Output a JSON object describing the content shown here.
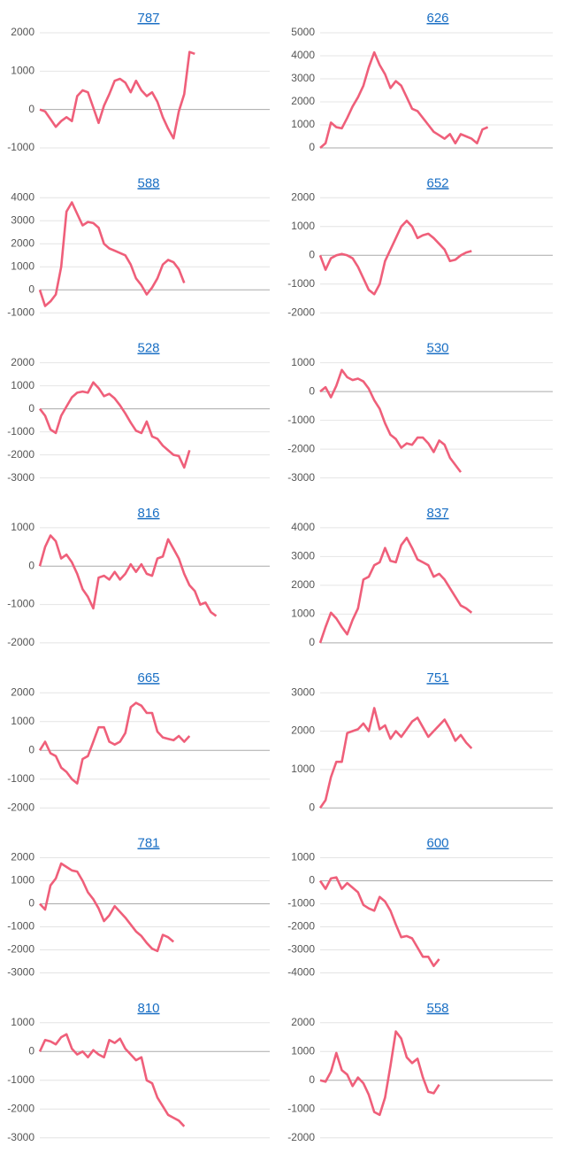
{
  "chart_data": [
    {
      "type": "line",
      "title": "787",
      "color": "#ef5f7a",
      "grid": true,
      "ylim": [
        -1000,
        2000
      ],
      "yticks": [
        -1000,
        0,
        1000,
        2000
      ],
      "values": [
        0,
        -50,
        -250,
        -450,
        -300,
        -200,
        -300,
        350,
        500,
        450,
        50,
        -350,
        100,
        400,
        750,
        800,
        700,
        450,
        750,
        500,
        350,
        450,
        200,
        -200,
        -500,
        -750,
        -50,
        400,
        1500,
        1450
      ]
    },
    {
      "type": "line",
      "title": "626",
      "color": "#ef5f7a",
      "grid": true,
      "ylim": [
        0,
        5000
      ],
      "yticks": [
        0,
        1000,
        2000,
        3000,
        4000,
        5000
      ],
      "values": [
        0,
        200,
        1100,
        900,
        850,
        1300,
        1800,
        2200,
        2700,
        3500,
        4150,
        3600,
        3200,
        2600,
        2900,
        2700,
        2200,
        1700,
        1600,
        1300,
        1000,
        700,
        550,
        400,
        600,
        200,
        600,
        500,
        400,
        200,
        800,
        900
      ]
    },
    {
      "type": "line",
      "title": "588",
      "color": "#ef5f7a",
      "grid": true,
      "ylim": [
        -1000,
        4000
      ],
      "yticks": [
        -1000,
        0,
        1000,
        2000,
        3000,
        4000
      ],
      "values": [
        0,
        -700,
        -500,
        -200,
        1000,
        3400,
        3800,
        3300,
        2800,
        2950,
        2900,
        2700,
        2000,
        1800,
        1700,
        1600,
        1500,
        1100,
        500,
        200,
        -200,
        100,
        500,
        1100,
        1300,
        1200,
        900,
        300
      ]
    },
    {
      "type": "line",
      "title": "652",
      "color": "#ef5f7a",
      "grid": true,
      "ylim": [
        -2000,
        2000
      ],
      "yticks": [
        -2000,
        -1000,
        0,
        1000,
        2000
      ],
      "values": [
        0,
        -500,
        -100,
        0,
        50,
        0,
        -100,
        -400,
        -800,
        -1200,
        -1350,
        -1000,
        -200,
        200,
        600,
        1000,
        1200,
        1000,
        600,
        700,
        750,
        600,
        400,
        200,
        -200,
        -150,
        0,
        100,
        150
      ]
    },
    {
      "type": "line",
      "title": "528",
      "color": "#ef5f7a",
      "grid": true,
      "ylim": [
        -3000,
        2000
      ],
      "yticks": [
        -3000,
        -2000,
        -1000,
        0,
        1000,
        2000
      ],
      "values": [
        0,
        -300,
        -900,
        -1050,
        -300,
        100,
        500,
        700,
        750,
        700,
        1150,
        900,
        550,
        650,
        450,
        150,
        -200,
        -600,
        -950,
        -1050,
        -550,
        -1200,
        -1300,
        -1600,
        -1800,
        -2000,
        -2050,
        -2550,
        -1800
      ]
    },
    {
      "type": "line",
      "title": "530",
      "color": "#ef5f7a",
      "grid": true,
      "ylim": [
        -3000,
        1000
      ],
      "yticks": [
        -3000,
        -2000,
        -1000,
        0,
        1000
      ],
      "values": [
        0,
        150,
        -200,
        200,
        750,
        500,
        400,
        450,
        350,
        100,
        -300,
        -600,
        -1100,
        -1500,
        -1650,
        -1950,
        -1800,
        -1850,
        -1600,
        -1600,
        -1800,
        -2100,
        -1700,
        -1850,
        -2300,
        -2550,
        -2800
      ]
    },
    {
      "type": "line",
      "title": "816",
      "color": "#ef5f7a",
      "grid": true,
      "ylim": [
        -2000,
        1000
      ],
      "yticks": [
        -2000,
        -1000,
        0,
        1000
      ],
      "values": [
        0,
        500,
        800,
        650,
        200,
        300,
        100,
        -200,
        -600,
        -800,
        -1100,
        -300,
        -250,
        -350,
        -150,
        -350,
        -200,
        50,
        -150,
        50,
        -200,
        -250,
        200,
        250,
        700,
        450,
        200,
        -200,
        -500,
        -650,
        -1000,
        -950,
        -1200,
        -1300
      ]
    },
    {
      "type": "line",
      "title": "837",
      "color": "#ef5f7a",
      "grid": true,
      "ylim": [
        0,
        4000
      ],
      "yticks": [
        0,
        1000,
        2000,
        3000,
        4000
      ],
      "values": [
        0,
        550,
        1050,
        850,
        550,
        300,
        800,
        1200,
        2200,
        2300,
        2700,
        2800,
        3300,
        2850,
        2800,
        3400,
        3650,
        3300,
        2900,
        2800,
        2700,
        2300,
        2400,
        2200,
        1900,
        1600,
        1300,
        1200,
        1050
      ]
    },
    {
      "type": "line",
      "title": "665",
      "color": "#ef5f7a",
      "grid": true,
      "ylim": [
        -2000,
        2000
      ],
      "yticks": [
        -2000,
        -1000,
        0,
        1000,
        2000
      ],
      "values": [
        0,
        300,
        -100,
        -200,
        -600,
        -750,
        -1000,
        -1150,
        -300,
        -200,
        300,
        800,
        800,
        300,
        200,
        300,
        600,
        1500,
        1650,
        1550,
        1300,
        1300,
        650,
        450,
        400,
        350,
        500,
        300,
        500
      ]
    },
    {
      "type": "line",
      "title": "751",
      "color": "#ef5f7a",
      "grid": true,
      "ylim": [
        0,
        3000
      ],
      "yticks": [
        0,
        1000,
        2000,
        3000
      ],
      "values": [
        0,
        200,
        800,
        1200,
        1200,
        1950,
        2000,
        2050,
        2200,
        2000,
        2600,
        2050,
        2150,
        1800,
        2000,
        1850,
        2050,
        2250,
        2350,
        2100,
        1850,
        2000,
        2150,
        2300,
        2050,
        1750,
        1900,
        1700,
        1550
      ]
    },
    {
      "type": "line",
      "title": "781",
      "color": "#ef5f7a",
      "grid": true,
      "ylim": [
        -3000,
        2000
      ],
      "yticks": [
        -3000,
        -2000,
        -1000,
        0,
        1000,
        2000
      ],
      "values": [
        0,
        -250,
        800,
        1100,
        1750,
        1600,
        1450,
        1400,
        1000,
        500,
        200,
        -200,
        -750,
        -500,
        -100,
        -350,
        -600,
        -900,
        -1200,
        -1400,
        -1700,
        -1950,
        -2050,
        -1350,
        -1450,
        -1650
      ]
    },
    {
      "type": "line",
      "title": "600",
      "color": "#ef5f7a",
      "grid": true,
      "ylim": [
        -4000,
        1000
      ],
      "yticks": [
        -4000,
        -3000,
        -2000,
        -1000,
        0,
        1000
      ],
      "values": [
        0,
        -350,
        100,
        150,
        -350,
        -100,
        -300,
        -500,
        -1050,
        -1200,
        -1300,
        -700,
        -900,
        -1300,
        -1900,
        -2450,
        -2400,
        -2500,
        -2900,
        -3300,
        -3300,
        -3700,
        -3400
      ]
    },
    {
      "type": "line",
      "title": "810",
      "color": "#ef5f7a",
      "grid": true,
      "ylim": [
        -3000,
        1000
      ],
      "yticks": [
        -3000,
        -2000,
        -1000,
        0,
        1000
      ],
      "values": [
        0,
        400,
        350,
        250,
        500,
        600,
        100,
        -100,
        0,
        -200,
        50,
        -100,
        -200,
        400,
        300,
        450,
        100,
        -100,
        -300,
        -200,
        -1000,
        -1100,
        -1600,
        -1900,
        -2200,
        -2300,
        -2400,
        -2600
      ]
    },
    {
      "type": "line",
      "title": "558",
      "color": "#ef5f7a",
      "grid": true,
      "ylim": [
        -2000,
        2000
      ],
      "yticks": [
        -2000,
        -1000,
        0,
        1000,
        2000
      ],
      "values": [
        0,
        -50,
        300,
        950,
        350,
        200,
        -200,
        100,
        -100,
        -500,
        -1100,
        -1200,
        -600,
        500,
        1700,
        1450,
        800,
        600,
        750,
        100,
        -400,
        -450,
        -150
      ]
    }
  ]
}
